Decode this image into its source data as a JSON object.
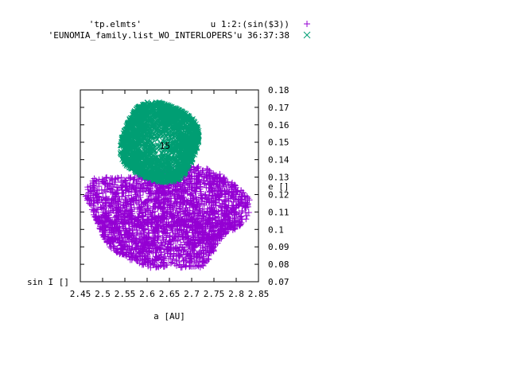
{
  "chart_data": {
    "type": "scatter",
    "title": "",
    "xlabel": "a [AU]",
    "ylabel_left": "sin I []",
    "ylabel_right": "e []",
    "xlim": [
      2.45,
      2.85
    ],
    "ylim_left": [
      0.07,
      0.18
    ],
    "xticks": [
      "2.45",
      "2.5",
      "2.55",
      "2.6",
      "2.65",
      "2.7",
      "2.75",
      "2.8",
      "2.85"
    ],
    "xtick_values": [
      2.45,
      2.5,
      2.55,
      2.6,
      2.65,
      2.7,
      2.75,
      2.8,
      2.85
    ],
    "yticks_right": [
      "0.07",
      "0.08",
      "0.09",
      "0.1",
      "0.11",
      "0.12",
      "0.13",
      "0.14",
      "0.15",
      "0.16",
      "0.17",
      "0.18"
    ],
    "ytick_values": [
      0.07,
      0.08,
      0.09,
      0.1,
      0.11,
      0.12,
      0.13,
      0.14,
      0.15,
      0.16,
      0.17,
      0.18
    ],
    "annotation": {
      "text": "15",
      "x": 2.64,
      "y": 0.148
    },
    "series": [
      {
        "name": "'tp.elmts'",
        "using": "u 1:2:(sin($3))",
        "marker": "+",
        "color": "#9400d3",
        "region": {
          "x_range": [
            2.46,
            2.83
          ],
          "y_range": [
            0.078,
            0.142
          ],
          "note": "dense cloud of several thousand points, center near a=2.64, sinI=0.107"
        }
      },
      {
        "name": "'EUNOMIA_family.list_WO_INTERLOPERS'",
        "using": "u 36:37:38",
        "marker": "x",
        "color": "#009e73",
        "region": {
          "x_range": [
            2.53,
            2.72
          ],
          "y_range": [
            0.126,
            0.173
          ],
          "note": "dense cloud of several thousand points, center near a=2.635, sinI=0.151"
        }
      }
    ]
  }
}
